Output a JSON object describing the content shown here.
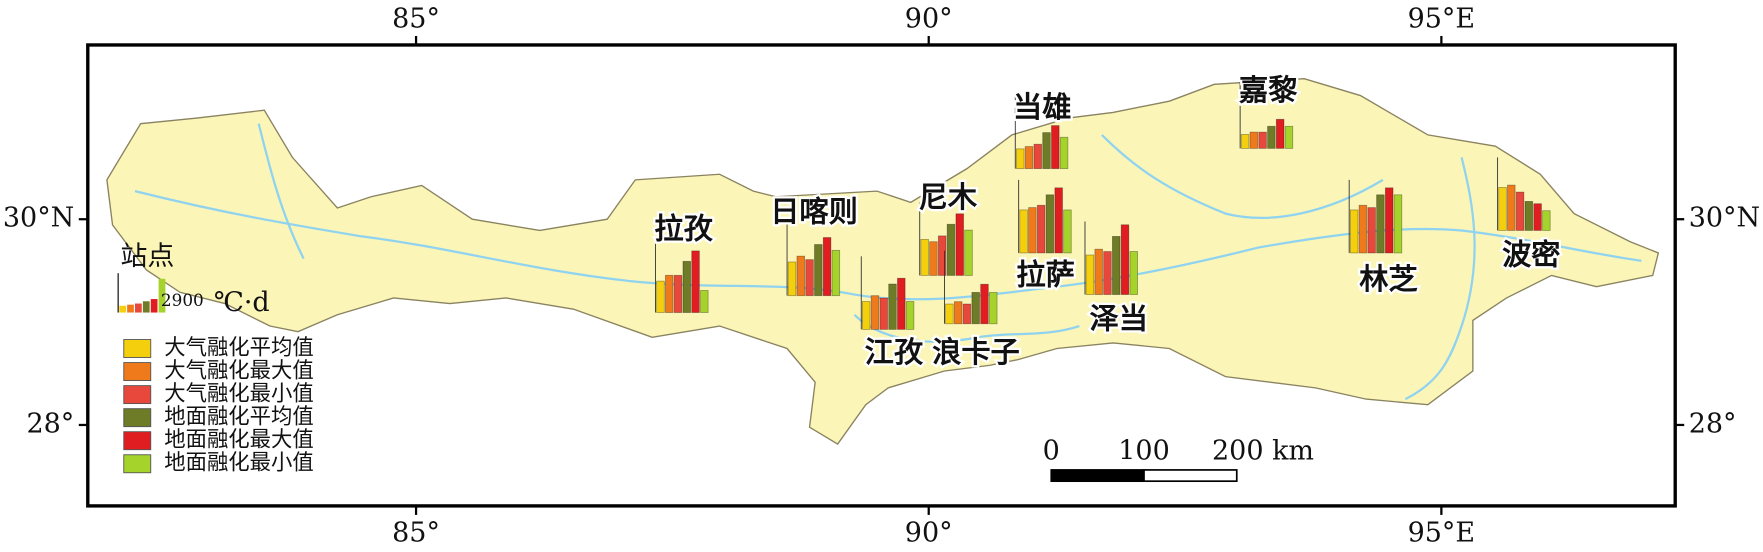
{
  "map": {
    "lon_ticks": [
      {
        "value": 85,
        "label": "85°"
      },
      {
        "value": 90,
        "label": "90°"
      },
      {
        "value": 95,
        "label": "95°E"
      }
    ],
    "lat_ticks": [
      {
        "value": 30,
        "label": "30°N"
      },
      {
        "value": 28,
        "label": "28°"
      }
    ],
    "legend_title": "站点",
    "scale_reference": {
      "value": 2900,
      "label": "2900"
    },
    "unit": "℃·d",
    "series": [
      {
        "name": "大气融化平均值",
        "color": "#f3cf0e"
      },
      {
        "name": "大气融化最大值",
        "color": "#ee7a1c"
      },
      {
        "name": "大气融化最小值",
        "color": "#e8473c"
      },
      {
        "name": "地面融化平均值",
        "color": "#6e7b27"
      },
      {
        "name": "地面融化最大值",
        "color": "#e01e22"
      },
      {
        "name": "地面融化最小值",
        "color": "#a6d22c"
      }
    ],
    "stations": [
      {
        "name": "拉孜",
        "values": [
          2700,
          3200,
          3200,
          4400,
          5300,
          1900
        ]
      },
      {
        "name": "日喀则",
        "values": [
          2900,
          3400,
          3100,
          4400,
          5000,
          3900
        ]
      },
      {
        "name": "尼木",
        "values": [
          3100,
          2900,
          3400,
          4400,
          5300,
          3900
        ]
      },
      {
        "name": "江孜",
        "values": [
          2400,
          2900,
          2700,
          3900,
          4400,
          2400
        ]
      },
      {
        "name": "浪卡子",
        "values": [
          1700,
          1900,
          1700,
          2700,
          3400,
          2700
        ]
      },
      {
        "name": "当雄",
        "values": [
          1700,
          1900,
          2100,
          3100,
          3700,
          2700
        ]
      },
      {
        "name": "拉萨",
        "values": [
          3700,
          3900,
          4100,
          5000,
          5600,
          3700
        ]
      },
      {
        "name": "泽当",
        "values": [
          3400,
          3900,
          3700,
          5000,
          6000,
          3700
        ]
      },
      {
        "name": "嘉黎",
        "values": [
          1200,
          1400,
          1400,
          1900,
          2500,
          1900
        ]
      },
      {
        "name": "林芝",
        "values": [
          3700,
          4100,
          3900,
          5000,
          5600,
          5000
        ]
      },
      {
        "name": "波密",
        "values": [
          3700,
          3900,
          3300,
          2500,
          2300,
          1700
        ]
      }
    ],
    "scalebar": {
      "ticks": [
        0,
        100,
        {
          "value": 200,
          "label": "200 km"
        }
      ]
    }
  }
}
